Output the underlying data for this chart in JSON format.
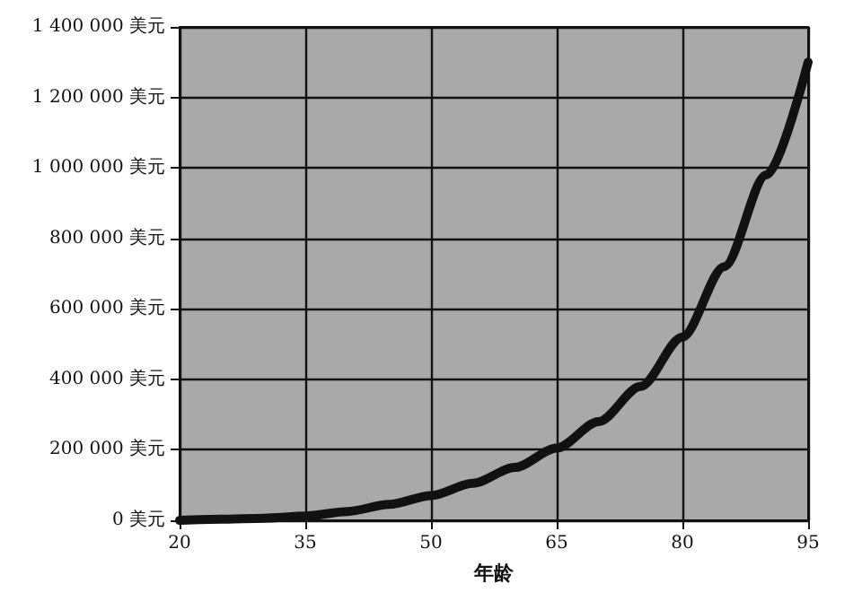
{
  "chart_data": {
    "type": "line",
    "xlabel": "年龄",
    "x": [
      20,
      25,
      30,
      35,
      40,
      45,
      50,
      55,
      60,
      65,
      70,
      75,
      80,
      85,
      90,
      95
    ],
    "series": [
      {
        "color": "#111111",
        "values": [
          0,
          3000,
          6000,
          12000,
          25000,
          45000,
          70000,
          105000,
          150000,
          205000,
          280000,
          380000,
          520000,
          720000,
          980000,
          1300000
        ]
      }
    ],
    "xlim": [
      20,
      95
    ],
    "xticks": [
      20,
      35,
      50,
      65,
      80,
      95
    ],
    "ylim": [
      0,
      1400000
    ],
    "yticks": [
      {
        "value": 0,
        "label": "0 美元"
      },
      {
        "value": 200000,
        "label": "200 000 美元"
      },
      {
        "value": 400000,
        "label": "400 000 美元"
      },
      {
        "value": 600000,
        "label": "600 000 美元"
      },
      {
        "value": 800000,
        "label": "800 000 美元"
      },
      {
        "value": 1000000,
        "label": "1 000 000 美元"
      },
      {
        "value": 1200000,
        "label": "1 200 000 美元"
      },
      {
        "value": 1400000,
        "label": "1 400 000 美元"
      }
    ],
    "grid": true,
    "marker": "none",
    "line_style": "solid"
  }
}
